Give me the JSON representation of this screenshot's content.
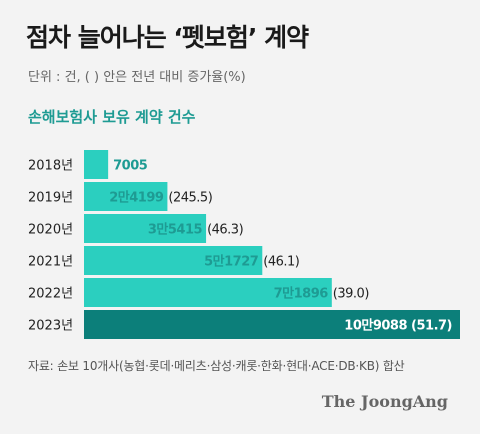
{
  "title": "점차 늘어나는 ‘펫보험’ 계약",
  "unit_note": "단위 : 건, ( ) 안은 전년 대비 증가율(%)",
  "source": "자료: 손보 10개사(농협·롯데·메리츠·삼성·캐롯·한화·현대·ACE·DB·KB) 합산",
  "logo": "The JoongAng",
  "colors": {
    "bar": "#2bcfbf",
    "bar_last": "#0c7f7a",
    "accent_text": "#1e9b93",
    "background": "#f3f3f3"
  },
  "chart_data": {
    "type": "bar",
    "orientation": "horizontal",
    "title": "손해보험사 보유 계약 건수",
    "categories": [
      "2018년",
      "2019년",
      "2020년",
      "2021년",
      "2022년",
      "2023년"
    ],
    "values": [
      7005,
      24199,
      35415,
      51727,
      71896,
      109088
    ],
    "value_labels": [
      "7005",
      "2만4199",
      "3만5415",
      "5만1727",
      "7만1896",
      "10만9088"
    ],
    "growth_labels": [
      "",
      "(245.5)",
      "(46.3)",
      "(46.1)",
      "(39.0)",
      "(51.7)"
    ],
    "growth_rates": [
      null,
      245.5,
      46.3,
      46.1,
      39.0,
      51.7
    ],
    "xlim": [
      0,
      109088
    ],
    "grid": false,
    "legend": "none"
  }
}
